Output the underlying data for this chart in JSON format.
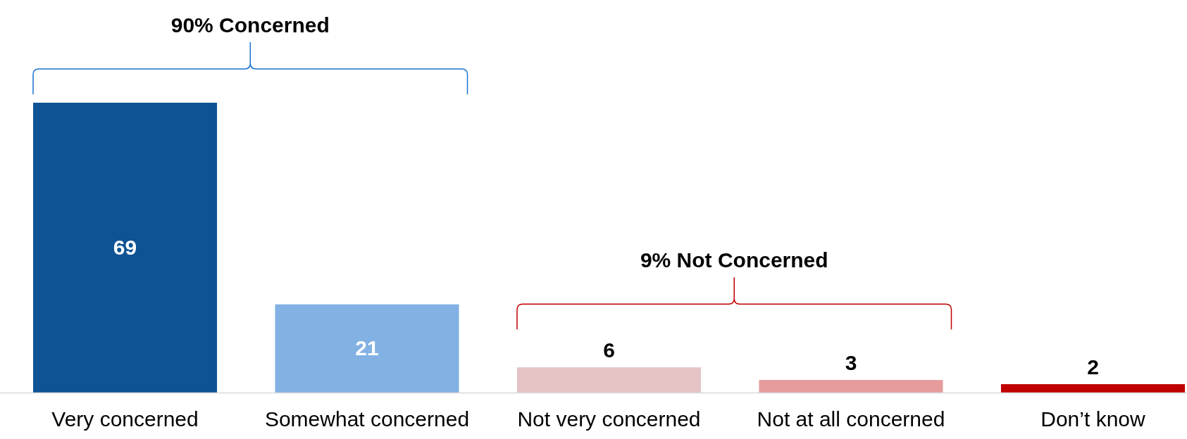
{
  "chart_data": {
    "type": "bar",
    "categories": [
      "Very concerned",
      "Somewhat concerned",
      "Not very concerned",
      "Not at all concerned",
      "Don’t know"
    ],
    "values": [
      69,
      21,
      6,
      3,
      2
    ],
    "colors": [
      "#0e5394",
      "#82b1e3",
      "#e4c3c5",
      "#e69c9c",
      "#c00000"
    ],
    "data_labels": true,
    "annotations": [
      "90% Concerned",
      "9% Not Concerned"
    ]
  }
}
